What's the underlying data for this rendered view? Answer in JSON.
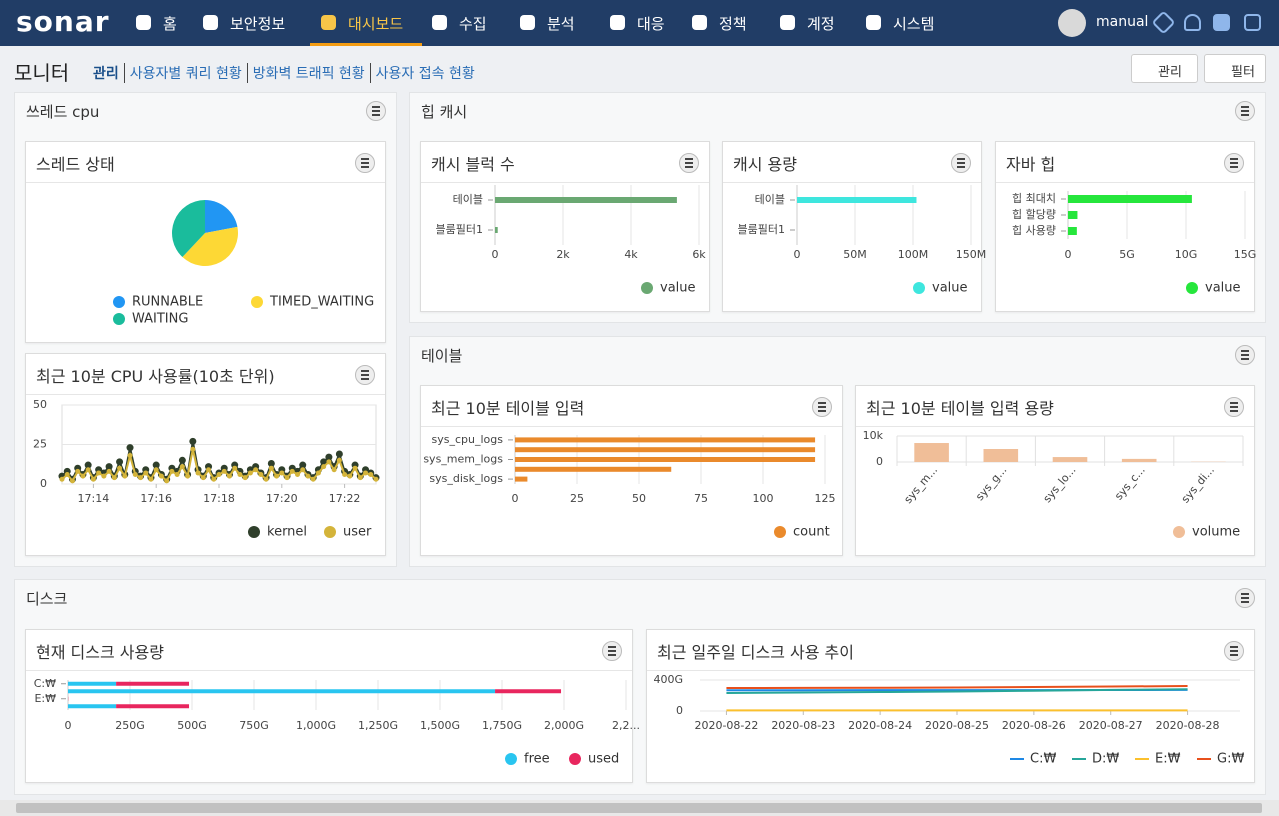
{
  "nav": {
    "logo": "sonar",
    "menu": [
      "홈",
      "보안정보",
      "대시보드",
      "수집",
      "분석",
      "대응",
      "정책",
      "계정",
      "시스템"
    ],
    "active": 2,
    "user": "manual"
  },
  "header": {
    "title": "모니터",
    "links": [
      "관리",
      "사용자별 쿼리 현황",
      "방화벽 트래픽 현황",
      "사용자 접속 현황"
    ],
    "buttons": [
      "관리",
      "필터"
    ]
  },
  "panels": [
    {
      "title": "쓰레드 cpu",
      "charts": [
        {
          "type": "pie",
          "title": "스레드 상태",
          "categories": [
            "RUNNABLE",
            "TIMED_WAITING",
            "WAITING"
          ],
          "values": [
            22,
            40,
            38
          ],
          "colors": [
            "#2196f3",
            "#fdd835",
            "#1abc9c"
          ]
        },
        {
          "type": "line",
          "title": "최근 10분 CPU 사용률(10초 단위)",
          "markers": true,
          "categories": [
            null,
            null,
            null,
            null,
            null,
            null,
            "17:14",
            null,
            null,
            null,
            null,
            null,
            null,
            null,
            null,
            null,
            null,
            null,
            "17:16",
            null,
            null,
            null,
            null,
            null,
            null,
            null,
            null,
            null,
            null,
            null,
            "17:18",
            null,
            null,
            null,
            null,
            null,
            null,
            null,
            null,
            null,
            null,
            null,
            "17:20",
            null,
            null,
            null,
            null,
            null,
            null,
            null,
            null,
            null,
            null,
            null,
            "17:22",
            null,
            null,
            null,
            null,
            null,
            null
          ],
          "series": [
            {
              "name": "kernel",
              "color": "#2f3f2b",
              "values": [
                5,
                8,
                3,
                10,
                6,
                12,
                4,
                9,
                7,
                11,
                5,
                14,
                6,
                23,
                8,
                5,
                9,
                4,
                12,
                6,
                3,
                10,
                8,
                15,
                6,
                27,
                9,
                5,
                11,
                4,
                7,
                10,
                6,
                12,
                8,
                5,
                9,
                11,
                7,
                4,
                13,
                6,
                9,
                5,
                10,
                8,
                12,
                6,
                4,
                9,
                14,
                17,
                11,
                19,
                8,
                6,
                12,
                5,
                9,
                7,
                4
              ]
            },
            {
              "name": "user",
              "color": "#d4b43a",
              "values": [
                3,
                6,
                2,
                8,
                5,
                9,
                3,
                7,
                5,
                8,
                4,
                10,
                5,
                18,
                6,
                4,
                7,
                3,
                9,
                5,
                2,
                8,
                6,
                11,
                5,
                22,
                7,
                4,
                9,
                3,
                6,
                8,
                5,
                10,
                6,
                4,
                7,
                9,
                6,
                3,
                10,
                5,
                7,
                4,
                8,
                6,
                9,
                5,
                3,
                7,
                11,
                14,
                9,
                15,
                6,
                5,
                10,
                4,
                7,
                6,
                3
              ]
            }
          ],
          "ylim": [
            0,
            50
          ],
          "yticks": [
            0,
            25,
            50
          ]
        }
      ]
    },
    {
      "title": "힙 캐시",
      "charts": [
        {
          "type": "hbar",
          "title": "캐시 블럭 수",
          "categories": [
            "테이블",
            "블룸필터1"
          ],
          "series": [
            {
              "name": "value",
              "color": "#6aa872",
              "values": [
                5350,
                80
              ]
            }
          ],
          "xlim": [
            0,
            6000
          ],
          "xticks": [
            0,
            {
              "value": 2000,
              "label": "2k"
            },
            {
              "value": 4000,
              "label": "4k"
            },
            {
              "value": 6000,
              "label": "6k"
            }
          ]
        },
        {
          "type": "hbar",
          "title": "캐시 용량",
          "categories": [
            "테이블",
            "블룸필터1"
          ],
          "series": [
            {
              "name": "value",
              "color": "#3ee6de",
              "values": [
                103000000,
                0
              ]
            }
          ],
          "xlim": [
            0,
            150000000
          ],
          "xticks": [
            0,
            {
              "value": 50000000,
              "label": "50M"
            },
            {
              "value": 100000000,
              "label": "100M"
            },
            {
              "value": 150000000,
              "label": "150M"
            }
          ]
        },
        {
          "type": "hbar",
          "title": "자바 힙",
          "categories": [
            "힙 최대치",
            "힙 할당량",
            "힙 사용량"
          ],
          "series": [
            {
              "name": "value",
              "color": "#26e63c",
              "values": [
                10.5,
                0.8,
                0.75
              ]
            }
          ],
          "xlim": [
            0,
            15
          ],
          "xticks": [
            0,
            {
              "value": 5,
              "label": "5G"
            },
            {
              "value": 10,
              "label": "10G"
            },
            {
              "value": 15,
              "label": "15G"
            }
          ]
        }
      ]
    },
    {
      "title": "테이블",
      "charts": [
        {
          "type": "hbar",
          "title": "최근 10분 테이블 입력",
          "categories": [
            "sys_cpu_logs",
            null,
            "sys_mem_logs",
            null,
            "sys_disk_logs"
          ],
          "series": [
            {
              "name": "count",
              "color": "#ea8a2c",
              "values": [
                121,
                121,
                121,
                63,
                5
              ]
            }
          ],
          "xlim": [
            0,
            125
          ],
          "xticks": [
            0,
            25,
            50,
            75,
            100,
            125
          ]
        },
        {
          "type": "bar",
          "title": "최근 10분 테이블 입력 용량",
          "categories": [
            "sys_m...",
            "sys_g...",
            "sys_lo...",
            "sys_c...",
            "sys_di..."
          ],
          "series": [
            {
              "name": "volume",
              "color": "#f0be98",
              "values": [
                7300,
                5000,
                1900,
                1200,
                100
              ]
            }
          ],
          "ylim": [
            0,
            10000
          ],
          "yticks": [
            0,
            {
              "value": 10000,
              "label": "10k"
            }
          ]
        }
      ]
    },
    {
      "title": "디스크",
      "charts": [
        {
          "type": "hbar",
          "title": "현재 디스크 사용량",
          "categories": [
            "C:₩",
            null,
            "E:₩",
            null
          ],
          "series": [
            {
              "name": "free",
              "color": "#29c5f0",
              "values": [
                194,
                1722,
                0,
                194
              ]
            },
            {
              "name": "used",
              "color": "#e8265e",
              "values": [
                294,
                266,
                1,
                294
              ]
            }
          ],
          "xlim": [
            0,
            2250
          ],
          "xticks": [
            0,
            {
              "value": 250,
              "label": "250G"
            },
            {
              "value": 500,
              "label": "500G"
            },
            {
              "value": 750,
              "label": "750G"
            },
            {
              "value": 1000,
              "label": "1,000G"
            },
            {
              "value": 1250,
              "label": "1,250G"
            },
            {
              "value": 1500,
              "label": "1,500G"
            },
            {
              "value": 1750,
              "label": "1,750G"
            },
            {
              "value": 2000,
              "label": "2,000G"
            },
            {
              "value": 2250,
              "label": "2,2..."
            }
          ]
        },
        {
          "type": "line",
          "title": "최근 일주일 디스크 사용 추이",
          "markers": false,
          "categories": [
            "2020-08-22",
            "2020-08-23",
            "2020-08-24",
            "2020-08-25",
            "2020-08-26",
            "2020-08-27",
            "2020-08-28"
          ],
          "series": [
            {
              "name": "C:₩",
              "color": "#1e88e5",
              "values": [
                268,
                268,
                269,
                270,
                270,
                271,
                272
              ]
            },
            {
              "name": "D:₩",
              "color": "#26a69a",
              "values": [
                232,
                238,
                245,
                252,
                262,
                272,
                280
              ]
            },
            {
              "name": "E:₩",
              "color": "#fbc02d",
              "values": [
                8,
                8,
                8,
                8,
                8,
                8,
                8
              ]
            },
            {
              "name": "G:₩",
              "color": "#e8501c",
              "values": [
                296,
                298,
                300,
                304,
                310,
                316,
                322
              ]
            }
          ],
          "ylim": [
            0,
            400
          ],
          "yticks": [
            0,
            {
              "value": 400,
              "label": "400G"
            }
          ]
        }
      ]
    }
  ]
}
